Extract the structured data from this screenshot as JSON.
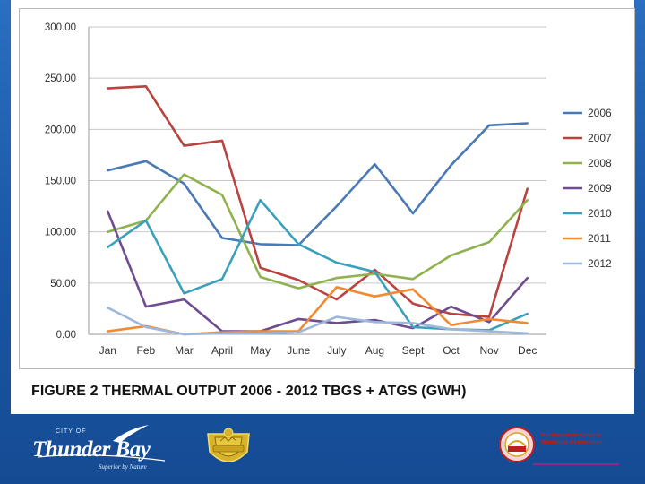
{
  "caption": "FIGURE 2 THERMAL OUTPUT 2006 - 2012 TBGS + ATGS (GWH)",
  "chart_data": {
    "type": "line",
    "title": "",
    "xlabel": "",
    "ylabel": "",
    "ylim": [
      0,
      300
    ],
    "yticks": [
      "0.00",
      "50.00",
      "100.00",
      "150.00",
      "200.00",
      "250.00",
      "300.00"
    ],
    "grid": "horizontal",
    "legend_position": "right",
    "categories": [
      "Jan",
      "Feb",
      "Mar",
      "April",
      "May",
      "June",
      "July",
      "Aug",
      "Sept",
      "Oct",
      "Nov",
      "Dec"
    ],
    "series": [
      {
        "name": "2006",
        "color": "#4a7ab5",
        "values": [
          160,
          169,
          147,
          94,
          88,
          87,
          125,
          166,
          118,
          165,
          204,
          206
        ]
      },
      {
        "name": "2007",
        "color": "#b8433f",
        "values": [
          240,
          242,
          184,
          189,
          65,
          53,
          34,
          63,
          30,
          20,
          17,
          142
        ]
      },
      {
        "name": "2008",
        "color": "#8fb24e",
        "values": [
          100,
          111,
          156,
          136,
          56,
          45,
          55,
          59,
          54,
          77,
          90,
          131
        ]
      },
      {
        "name": "2009",
        "color": "#6e4c8f",
        "values": [
          120,
          27,
          34,
          3,
          3,
          15,
          11,
          14,
          6,
          27,
          12,
          55
        ]
      },
      {
        "name": "2010",
        "color": "#3aa0bc",
        "values": [
          85,
          111,
          40,
          54,
          131,
          88,
          70,
          61,
          7,
          5,
          4,
          20
        ]
      },
      {
        "name": "2011",
        "color": "#f08a33",
        "values": [
          3,
          8,
          0,
          2,
          3,
          3,
          46,
          37,
          44,
          9,
          15,
          11
        ]
      },
      {
        "name": "2012",
        "color": "#9db8dc",
        "values": [
          26,
          7,
          0,
          1,
          1,
          2,
          17,
          12,
          11,
          5,
          3,
          1
        ]
      }
    ]
  },
  "logos": {
    "city_prefix": "CITY OF",
    "city_name": "Thunder Bay",
    "city_tagline": "Superior by Nature",
    "noma_line1": "Northwestern Ontario",
    "noma_line2": "Municipal Association",
    "noma_acronym": "noma"
  },
  "colors": {
    "background": "#1a56a4",
    "grid": "#c8c8c8"
  }
}
